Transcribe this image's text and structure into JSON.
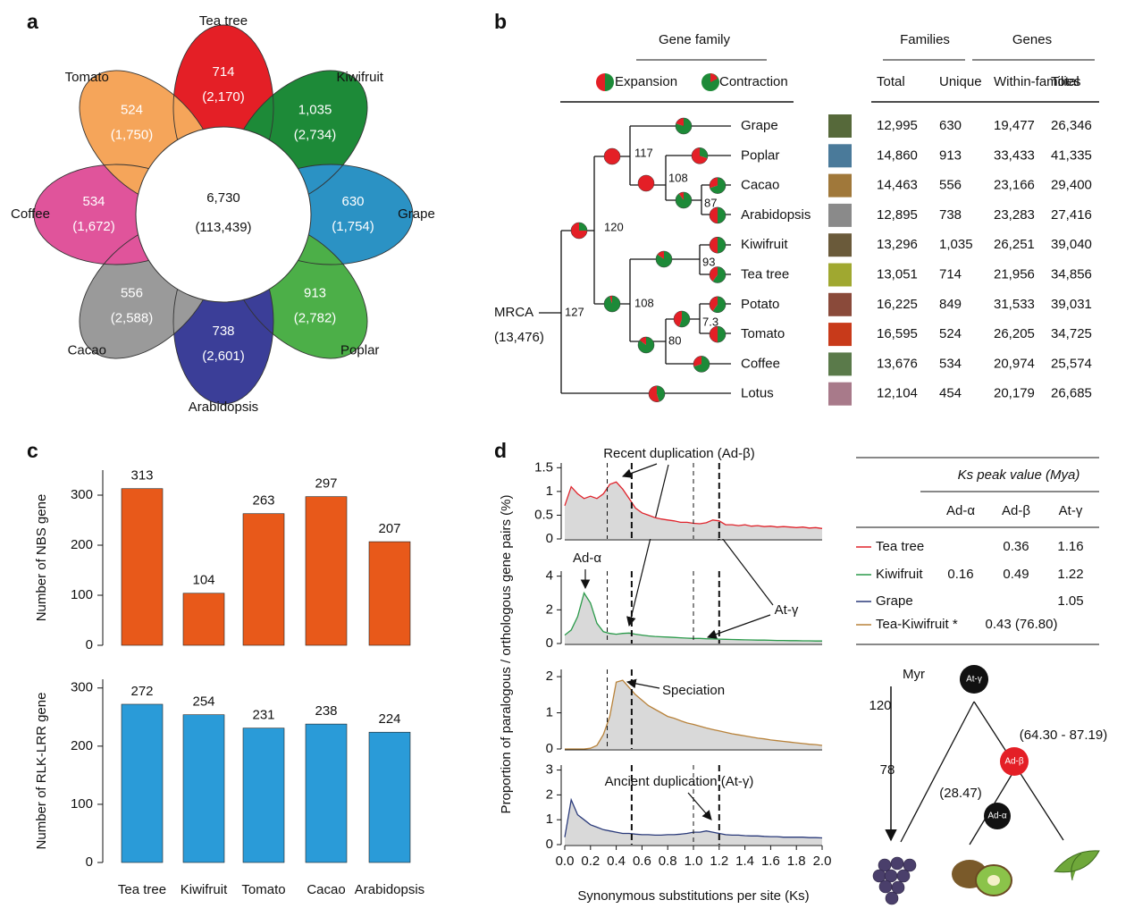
{
  "panel_labels": [
    "a",
    "b",
    "c",
    "d"
  ],
  "venn": {
    "core": {
      "unique": "6,730",
      "total": "(113,439)"
    },
    "petals": [
      {
        "name": "Tea tree",
        "unique": "714",
        "total": "(2,170)",
        "color": "#e41f26"
      },
      {
        "name": "Kiwifruit",
        "unique": "1,035",
        "total": "(2,734)",
        "color": "#1d8a38"
      },
      {
        "name": "Grape",
        "unique": "630",
        "total": "(1,754)",
        "color": "#2b92c4"
      },
      {
        "name": "Poplar",
        "unique": "913",
        "total": "(2,782)",
        "color": "#4caf48"
      },
      {
        "name": "Arabidopsis",
        "unique": "738",
        "total": "(2,601)",
        "color": "#3b3e98"
      },
      {
        "name": "Cacao",
        "unique": "556",
        "total": "(2,588)",
        "color": "#9a9a9a"
      },
      {
        "name": "Coffee",
        "unique": "534",
        "total": "(1,672)",
        "color": "#e0549b"
      },
      {
        "name": "Tomato",
        "unique": "524",
        "total": "(1,750)",
        "color": "#f5a55a"
      }
    ]
  },
  "gene_family": {
    "title": "Gene family",
    "expansion": "Expansion",
    "contraction": "Contraction"
  },
  "tree": {
    "root": {
      "label": "MRCA",
      "size": "(13,476)",
      "support": "127"
    },
    "nodes": [
      {
        "support": "120",
        "expansion": 0.75
      },
      {
        "support": "117",
        "expansion": 1
      },
      {
        "support": "108",
        "expansion": 1
      },
      {
        "support": "87",
        "expansion": 0.1
      },
      {
        "support": "93",
        "expansion": 0.15
      },
      {
        "support": "108",
        "expansion": 0.05
      },
      {
        "support": "80",
        "expansion": 0.15
      },
      {
        "support": "7.3",
        "expansion": 0.45
      }
    ],
    "leaves": [
      {
        "name": "Grape",
        "expansion": 0.2
      },
      {
        "name": "Poplar",
        "expansion": 0.7
      },
      {
        "name": "Cacao",
        "expansion": 0.3
      },
      {
        "name": "Arabidopsis",
        "expansion": 0.5
      },
      {
        "name": "Kiwifruit",
        "expansion": 0.5
      },
      {
        "name": "Tea tree",
        "expansion": 0.4
      },
      {
        "name": "Potato",
        "expansion": 0.4
      },
      {
        "name": "Tomato",
        "expansion": 0.5
      },
      {
        "name": "Coffee",
        "expansion": 0.3
      },
      {
        "name": "Lotus",
        "expansion": 0.55
      }
    ]
  },
  "gene_table": {
    "group_headers": [
      "Families",
      "Genes"
    ],
    "columns": [
      "Total",
      "Unique",
      "Within-families",
      "Total"
    ],
    "rows": [
      [
        "12,995",
        "630",
        "19,477",
        "26,346"
      ],
      [
        "14,860",
        "913",
        "33,433",
        "41,335"
      ],
      [
        "14,463",
        "556",
        "23,166",
        "29,400"
      ],
      [
        "12,895",
        "738",
        "23,283",
        "27,416"
      ],
      [
        "13,296",
        "1,035",
        "26,251",
        "39,040"
      ],
      [
        "13,051",
        "714",
        "21,956",
        "34,856"
      ],
      [
        "16,225",
        "849",
        "31,533",
        "39,031"
      ],
      [
        "16,595",
        "524",
        "26,205",
        "34,725"
      ],
      [
        "13,676",
        "534",
        "20,974",
        "25,574"
      ],
      [
        "12,104",
        "454",
        "20,179",
        "26,685"
      ]
    ]
  },
  "chart_data": [
    {
      "type": "bar",
      "ylabel": "Number of NBS gene",
      "values": [
        313,
        104,
        263,
        297,
        207
      ],
      "color": "#e8591a",
      "ylim": [
        0,
        350
      ],
      "yticks": [
        0,
        100,
        200,
        300
      ]
    },
    {
      "type": "bar",
      "ylabel": "Number of RLK-LRR gene",
      "categories": [
        "Tea tree",
        "Kiwifruit",
        "Tomato",
        "Cacao",
        "Arabidopsis"
      ],
      "values": [
        272,
        254,
        231,
        238,
        224
      ],
      "color": "#2a9bd8",
      "ylim": [
        0,
        315
      ],
      "yticks": [
        0,
        100,
        200,
        300
      ]
    },
    {
      "type": "line",
      "x": [
        0,
        0.05,
        0.1,
        0.15,
        0.2,
        0.25,
        0.3,
        0.35,
        0.4,
        0.45,
        0.5,
        0.55,
        0.6,
        0.65,
        0.7,
        0.75,
        0.8,
        0.85,
        0.9,
        0.95,
        1,
        1.05,
        1.1,
        1.15,
        1.2,
        1.25,
        1.3,
        1.35,
        1.4,
        1.45,
        1.5,
        1.55,
        1.6,
        1.65,
        1.7,
        1.75,
        1.8,
        1.85,
        1.9,
        1.95,
        2
      ],
      "series": [
        {
          "color": "#e0242c",
          "values": [
            0.7,
            1.1,
            0.95,
            0.85,
            0.9,
            0.85,
            0.95,
            1.15,
            1.2,
            1.05,
            0.85,
            0.65,
            0.55,
            0.5,
            0.45,
            0.42,
            0.4,
            0.38,
            0.35,
            0.35,
            0.33,
            0.32,
            0.34,
            0.4,
            0.38,
            0.3,
            0.3,
            0.28,
            0.3,
            0.27,
            0.28,
            0.26,
            0.27,
            0.25,
            0.26,
            0.25,
            0.24,
            0.25,
            0.23,
            0.24,
            0.22
          ]
        }
      ],
      "xlim": [
        0,
        2
      ],
      "ylim": [
        0,
        1.6
      ],
      "yticks": [
        0,
        0.5,
        1,
        1.5
      ],
      "reference_lines": [
        {
          "value": 0.33,
          "style": "thin"
        },
        {
          "value": 0.52,
          "style": "bold"
        },
        {
          "value": 1,
          "style": "thin"
        },
        {
          "value": 1.2,
          "style": "bold"
        }
      ],
      "annotations": [
        "Recent duplication (Ad-β)"
      ]
    },
    {
      "type": "line",
      "x": [
        0,
        0.05,
        0.1,
        0.15,
        0.2,
        0.25,
        0.3,
        0.35,
        0.4,
        0.45,
        0.5,
        0.55,
        0.6,
        0.65,
        0.7,
        0.75,
        0.8,
        0.85,
        0.9,
        0.95,
        1,
        1.05,
        1.1,
        1.15,
        1.2,
        1.25,
        1.3,
        1.35,
        1.4,
        1.45,
        1.5,
        1.55,
        1.6,
        1.65,
        1.7,
        1.75,
        1.8,
        1.85,
        1.9,
        1.95,
        2
      ],
      "series": [
        {
          "color": "#2a9a4a",
          "values": [
            0.5,
            0.8,
            1.6,
            3.0,
            2.4,
            1.2,
            0.7,
            0.6,
            0.55,
            0.6,
            0.62,
            0.55,
            0.5,
            0.45,
            0.42,
            0.4,
            0.38,
            0.36,
            0.34,
            0.32,
            0.3,
            0.3,
            0.28,
            0.27,
            0.26,
            0.25,
            0.24,
            0.23,
            0.22,
            0.21,
            0.2,
            0.2,
            0.19,
            0.18,
            0.18,
            0.17,
            0.17,
            0.16,
            0.16,
            0.15,
            0.15
          ]
        }
      ],
      "xlim": [
        0,
        2
      ],
      "ylim": [
        0,
        4.3
      ],
      "yticks": [
        0,
        2,
        4
      ],
      "reference_lines": [
        {
          "value": 0.33,
          "style": "thin"
        },
        {
          "value": 0.52,
          "style": "bold"
        },
        {
          "value": 1,
          "style": "thin"
        },
        {
          "value": 1.2,
          "style": "bold"
        }
      ],
      "annotations": [
        "Ad-α",
        "At-γ"
      ]
    },
    {
      "type": "line",
      "x": [
        0,
        0.05,
        0.1,
        0.15,
        0.2,
        0.25,
        0.3,
        0.35,
        0.4,
        0.45,
        0.5,
        0.55,
        0.6,
        0.65,
        0.7,
        0.75,
        0.8,
        0.85,
        0.9,
        0.95,
        1,
        1.05,
        1.1,
        1.15,
        1.2,
        1.25,
        1.3,
        1.35,
        1.4,
        1.45,
        1.5,
        1.55,
        1.6,
        1.65,
        1.7,
        1.75,
        1.8,
        1.85,
        1.9,
        1.95,
        2
      ],
      "series": [
        {
          "color": "#b8823a",
          "values": [
            0,
            0,
            0,
            0,
            0.02,
            0.1,
            0.4,
            0.9,
            1.85,
            1.9,
            1.7,
            1.5,
            1.35,
            1.2,
            1.1,
            1.0,
            0.9,
            0.85,
            0.78,
            0.72,
            0.68,
            0.63,
            0.58,
            0.54,
            0.5,
            0.46,
            0.42,
            0.39,
            0.36,
            0.33,
            0.3,
            0.28,
            0.25,
            0.23,
            0.21,
            0.19,
            0.17,
            0.15,
            0.13,
            0.12,
            0.1
          ]
        }
      ],
      "xlim": [
        0,
        2
      ],
      "ylim": [
        0,
        2.2
      ],
      "yticks": [
        0,
        1,
        2
      ],
      "reference_lines": [
        {
          "value": 0.33,
          "style": "thin"
        },
        {
          "value": 0.52,
          "style": "bold"
        }
      ],
      "annotations": [
        "Speciation"
      ]
    },
    {
      "type": "line",
      "x": [
        0,
        0.05,
        0.1,
        0.15,
        0.2,
        0.25,
        0.3,
        0.35,
        0.4,
        0.45,
        0.5,
        0.55,
        0.6,
        0.65,
        0.7,
        0.75,
        0.8,
        0.85,
        0.9,
        0.95,
        1,
        1.05,
        1.1,
        1.15,
        1.2,
        1.25,
        1.3,
        1.35,
        1.4,
        1.45,
        1.5,
        1.55,
        1.6,
        1.65,
        1.7,
        1.75,
        1.8,
        1.85,
        1.9,
        1.95,
        2
      ],
      "series": [
        {
          "color": "#2a3a7a",
          "values": [
            0.3,
            1.8,
            1.2,
            1.0,
            0.8,
            0.7,
            0.6,
            0.55,
            0.5,
            0.45,
            0.45,
            0.42,
            0.4,
            0.4,
            0.38,
            0.38,
            0.4,
            0.4,
            0.42,
            0.45,
            0.5,
            0.5,
            0.55,
            0.5,
            0.45,
            0.4,
            0.38,
            0.38,
            0.36,
            0.35,
            0.35,
            0.33,
            0.32,
            0.32,
            0.3,
            0.3,
            0.3,
            0.3,
            0.28,
            0.28,
            0.27
          ]
        }
      ],
      "xlim": [
        0,
        2
      ],
      "ylim": [
        0,
        3.2
      ],
      "yticks": [
        0,
        1,
        2,
        3
      ],
      "xticks": [
        {
          "value": 0,
          "label": "0.0"
        },
        0.2,
        0.4,
        0.6,
        0.8,
        {
          "value": 1,
          "label": "1.0"
        },
        1.2,
        1.4,
        1.6,
        1.8,
        {
          "value": 2,
          "label": "2.0"
        }
      ],
      "reference_lines": [
        {
          "value": 0.52,
          "style": "bold"
        },
        {
          "value": 1,
          "style": "thin"
        },
        {
          "value": 1.2,
          "style": "bold"
        }
      ],
      "annotations": [
        "Ancient duplication (At-γ)"
      ],
      "xlabel": "Synonymous substitutions per site (Ks)",
      "ylabel": "Proportion of paralogous / orthologous gene pairs (%)"
    }
  ],
  "ks_table": {
    "title": "Ks peak value (Mya)",
    "columns": [
      "Ad-α",
      "Ad-β",
      "At-γ"
    ],
    "rows": [
      {
        "name": "Tea tree",
        "color": "#e0242c",
        "values": [
          null,
          "0.36",
          "1.16"
        ]
      },
      {
        "name": "Kiwifruit",
        "color": "#2a9a4a",
        "values": [
          "0.16",
          "0.49",
          "1.22"
        ]
      },
      {
        "name": "Grape",
        "color": "#2a3a7a",
        "values": [
          null,
          null,
          "1.05"
        ]
      },
      {
        "name": "Tea-Kiwifruit *",
        "color": "#b8823a",
        "span": "0.43 (76.80)"
      }
    ]
  },
  "timeline": {
    "unit": "Myr",
    "ticks": [
      "120",
      "78"
    ],
    "events": [
      {
        "label": "At-γ"
      },
      {
        "label": "Ad-β",
        "range": "(64.30 - 87.19)"
      },
      {
        "label": "Ad-α",
        "range": "(28.47)"
      }
    ]
  }
}
